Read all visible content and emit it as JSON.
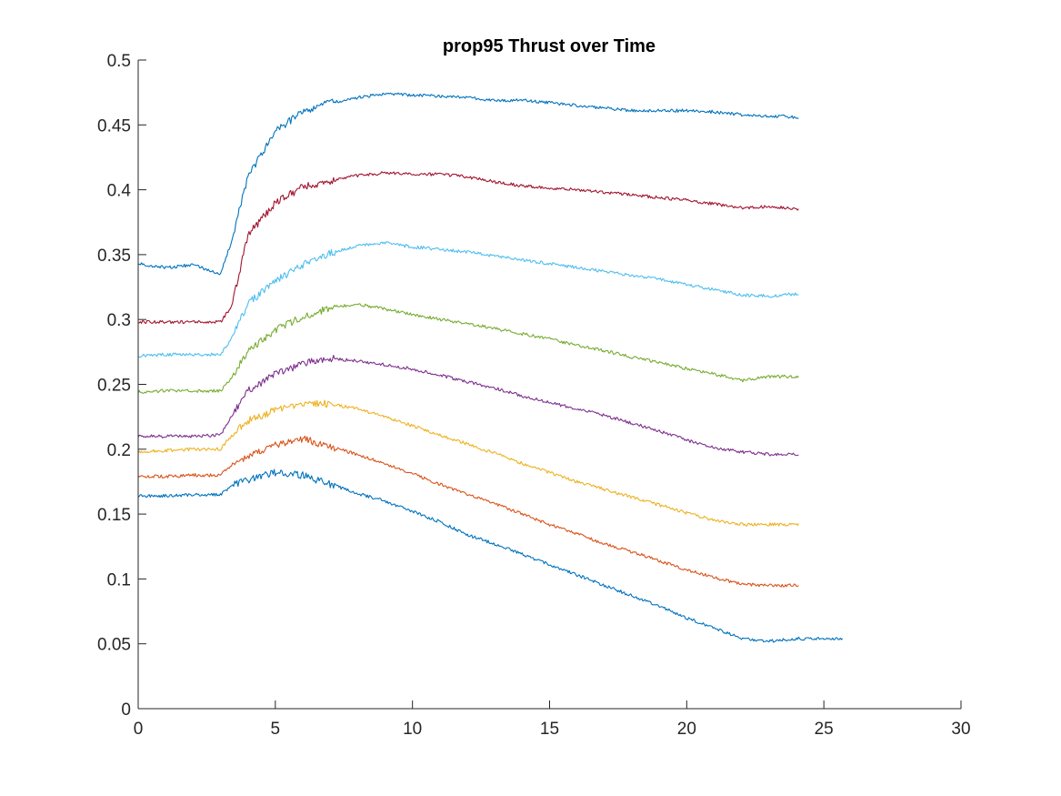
{
  "chart_data": {
    "type": "line",
    "title": "prop95 Thrust over Time",
    "xlabel": "",
    "ylabel": "",
    "xlim": [
      0,
      30
    ],
    "ylim": [
      0,
      0.5
    ],
    "xticks": [
      0,
      5,
      10,
      15,
      20,
      25,
      30
    ],
    "yticks": [
      0,
      0.05,
      0.1,
      0.15,
      0.2,
      0.25,
      0.3,
      0.35,
      0.4,
      0.45,
      0.5
    ],
    "xtick_labels": [
      "0",
      "5",
      "10",
      "15",
      "20",
      "25",
      "30"
    ],
    "ytick_labels": [
      "0",
      "0.05",
      "0.1",
      "0.15",
      "0.2",
      "0.25",
      "0.3",
      "0.35",
      "0.4",
      "0.45",
      "0.5"
    ],
    "grid": false,
    "box": false,
    "series": [
      {
        "color": "#0072BD",
        "x": [
          0,
          1,
          2,
          3,
          3.4,
          4,
          5,
          6,
          7,
          8,
          9,
          10,
          11,
          12,
          13,
          14,
          15,
          16,
          17,
          18,
          19,
          20,
          21,
          22,
          23,
          24,
          25,
          25.7
        ],
        "y": [
          0.164,
          0.164,
          0.165,
          0.165,
          0.172,
          0.176,
          0.182,
          0.18,
          0.173,
          0.166,
          0.16,
          0.152,
          0.144,
          0.134,
          0.127,
          0.119,
          0.111,
          0.103,
          0.095,
          0.087,
          0.079,
          0.07,
          0.062,
          0.054,
          0.052,
          0.054,
          0.054,
          0.054
        ]
      },
      {
        "color": "#D95319",
        "x": [
          0,
          1,
          2,
          3,
          3.4,
          4,
          5,
          6,
          7,
          8,
          9,
          10,
          11,
          12,
          13,
          14,
          15,
          16,
          17,
          18,
          19,
          20,
          21,
          22,
          23,
          24.1
        ],
        "y": [
          0.179,
          0.179,
          0.18,
          0.18,
          0.188,
          0.195,
          0.203,
          0.208,
          0.202,
          0.196,
          0.189,
          0.181,
          0.173,
          0.165,
          0.158,
          0.15,
          0.142,
          0.135,
          0.127,
          0.121,
          0.114,
          0.107,
          0.101,
          0.096,
          0.095,
          0.095
        ]
      },
      {
        "color": "#EDB120",
        "x": [
          0,
          1,
          2,
          3,
          3.4,
          4,
          5,
          6,
          7,
          8,
          9,
          10,
          11,
          12,
          13,
          14,
          15,
          16,
          17,
          18,
          19,
          20,
          21,
          22,
          23,
          24.1
        ],
        "y": [
          0.198,
          0.199,
          0.2,
          0.2,
          0.21,
          0.222,
          0.23,
          0.235,
          0.235,
          0.231,
          0.225,
          0.218,
          0.211,
          0.204,
          0.197,
          0.189,
          0.182,
          0.175,
          0.169,
          0.163,
          0.157,
          0.151,
          0.145,
          0.142,
          0.142,
          0.142
        ]
      },
      {
        "color": "#7E2F8E",
        "x": [
          0,
          1,
          2,
          3,
          3.4,
          4,
          5,
          6,
          7,
          8,
          9,
          10,
          11,
          12,
          13,
          14,
          15,
          16,
          17,
          18,
          19,
          20,
          21,
          22,
          23,
          24.1
        ],
        "y": [
          0.21,
          0.21,
          0.21,
          0.211,
          0.225,
          0.245,
          0.258,
          0.266,
          0.27,
          0.268,
          0.265,
          0.262,
          0.257,
          0.252,
          0.247,
          0.241,
          0.236,
          0.231,
          0.226,
          0.22,
          0.214,
          0.207,
          0.201,
          0.198,
          0.196,
          0.196
        ]
      },
      {
        "color": "#77AC30",
        "x": [
          0,
          1,
          2,
          3,
          3.4,
          4,
          5,
          6,
          7,
          8,
          9,
          10,
          11,
          12,
          13,
          14,
          15,
          16,
          17,
          18,
          19,
          20,
          21,
          22,
          23,
          24.1
        ],
        "y": [
          0.244,
          0.245,
          0.245,
          0.245,
          0.255,
          0.275,
          0.292,
          0.302,
          0.309,
          0.312,
          0.308,
          0.304,
          0.3,
          0.297,
          0.293,
          0.289,
          0.285,
          0.28,
          0.276,
          0.271,
          0.267,
          0.262,
          0.258,
          0.253,
          0.256,
          0.256
        ]
      },
      {
        "color": "#4DBEEE",
        "x": [
          0,
          1,
          2,
          3,
          3.4,
          4,
          5,
          6,
          7,
          8,
          9,
          10,
          11,
          12,
          13,
          14,
          15,
          16,
          17,
          18,
          19,
          20,
          21,
          22,
          23,
          24.1
        ],
        "y": [
          0.272,
          0.273,
          0.273,
          0.273,
          0.285,
          0.312,
          0.33,
          0.342,
          0.351,
          0.357,
          0.359,
          0.356,
          0.354,
          0.352,
          0.349,
          0.346,
          0.343,
          0.34,
          0.337,
          0.334,
          0.331,
          0.327,
          0.323,
          0.319,
          0.318,
          0.32
        ]
      },
      {
        "color": "#A2142F",
        "x": [
          0,
          1,
          2,
          3,
          3.4,
          4,
          5,
          6,
          7,
          8,
          9,
          10,
          11,
          12,
          13,
          14,
          15,
          16,
          17,
          18,
          19,
          20,
          21,
          22,
          23,
          24.1
        ],
        "y": [
          0.298,
          0.298,
          0.298,
          0.298,
          0.31,
          0.365,
          0.39,
          0.402,
          0.407,
          0.411,
          0.413,
          0.412,
          0.412,
          0.41,
          0.406,
          0.403,
          0.401,
          0.4,
          0.398,
          0.396,
          0.394,
          0.392,
          0.389,
          0.386,
          0.387,
          0.385
        ]
      },
      {
        "color": "#0072BD",
        "x": [
          0,
          1,
          2,
          3,
          3.4,
          4,
          5,
          6,
          7,
          8,
          9,
          10,
          11,
          12,
          13,
          14,
          15,
          16,
          17,
          18,
          19,
          20,
          21,
          22,
          23,
          24.1
        ],
        "y": [
          0.343,
          0.34,
          0.342,
          0.335,
          0.36,
          0.41,
          0.445,
          0.46,
          0.467,
          0.471,
          0.474,
          0.473,
          0.472,
          0.471,
          0.469,
          0.469,
          0.467,
          0.465,
          0.463,
          0.461,
          0.461,
          0.461,
          0.46,
          0.458,
          0.457,
          0.456
        ]
      }
    ]
  }
}
